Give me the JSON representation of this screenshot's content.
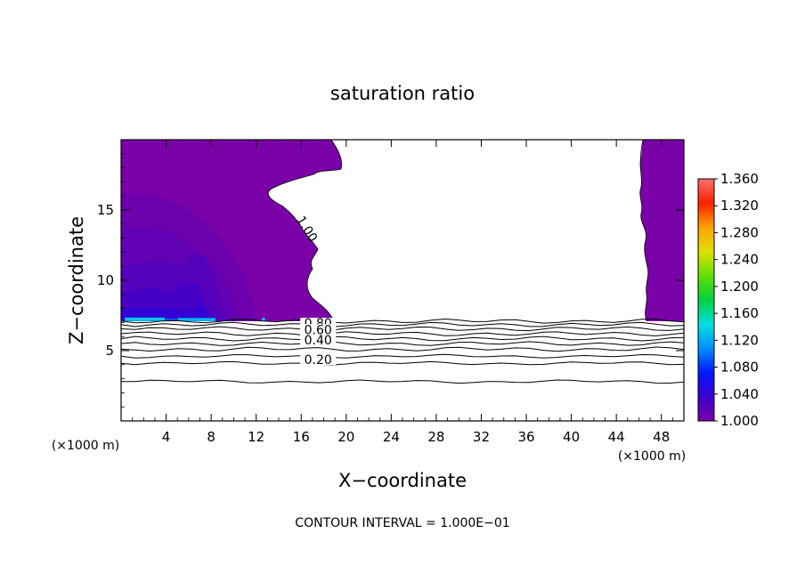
{
  "chart_data": {
    "type": "contour",
    "title": "saturation ratio",
    "xlabel": "X−coordinate",
    "ylabel": "Z−coordinate",
    "x_unit_left": "(×1000 m)",
    "x_unit_right": "(×1000 m)",
    "footer": "CONTOUR INTERVAL = 1.000E−01",
    "xlim": [
      0,
      50
    ],
    "ylim": [
      0,
      20
    ],
    "x_ticks": [
      "4",
      "8",
      "12",
      "16",
      "20",
      "24",
      "28",
      "32",
      "36",
      "40",
      "44",
      "48"
    ],
    "y_ticks": [
      "5",
      "10",
      "15"
    ],
    "colorbar": {
      "min": 1.0,
      "max": 1.36,
      "labels": [
        "1.360",
        "1.320",
        "1.280",
        "1.240",
        "1.200",
        "1.160",
        "1.120",
        "1.080",
        "1.040",
        "1.000"
      ],
      "colors": [
        "#7a00a8",
        "#3c00d0",
        "#0018ff",
        "#0090ff",
        "#00e0e0",
        "#00d040",
        "#60e000",
        "#e0e000",
        "#ffa000",
        "#ff2000",
        "#ff7070"
      ]
    },
    "contour_labels": [
      {
        "text": "1.00",
        "x": 16.2,
        "z": 13.5
      },
      {
        "text": "0.80",
        "x": 17.5,
        "z": 6.7
      },
      {
        "text": "0.60",
        "x": 17.5,
        "z": 6.25
      },
      {
        "text": "0.40",
        "x": 17.5,
        "z": 5.5
      },
      {
        "text": "0.20",
        "x": 17.5,
        "z": 4.1
      }
    ],
    "contour_levels": [
      {
        "level": "1.00",
        "z": 7.1
      },
      {
        "level": "0.90",
        "z": 6.85
      },
      {
        "level": "0.80",
        "z": 6.55
      },
      {
        "level": "0.70",
        "z": 6.2
      },
      {
        "level": "0.60",
        "z": 5.85
      },
      {
        "level": "0.50",
        "z": 5.5
      },
      {
        "level": "0.40",
        "z": 5.1
      },
      {
        "level": "0.30",
        "z": 4.6
      },
      {
        "level": "0.20",
        "z": 4.1
      },
      {
        "level": "0.10",
        "z": 2.8
      }
    ]
  }
}
